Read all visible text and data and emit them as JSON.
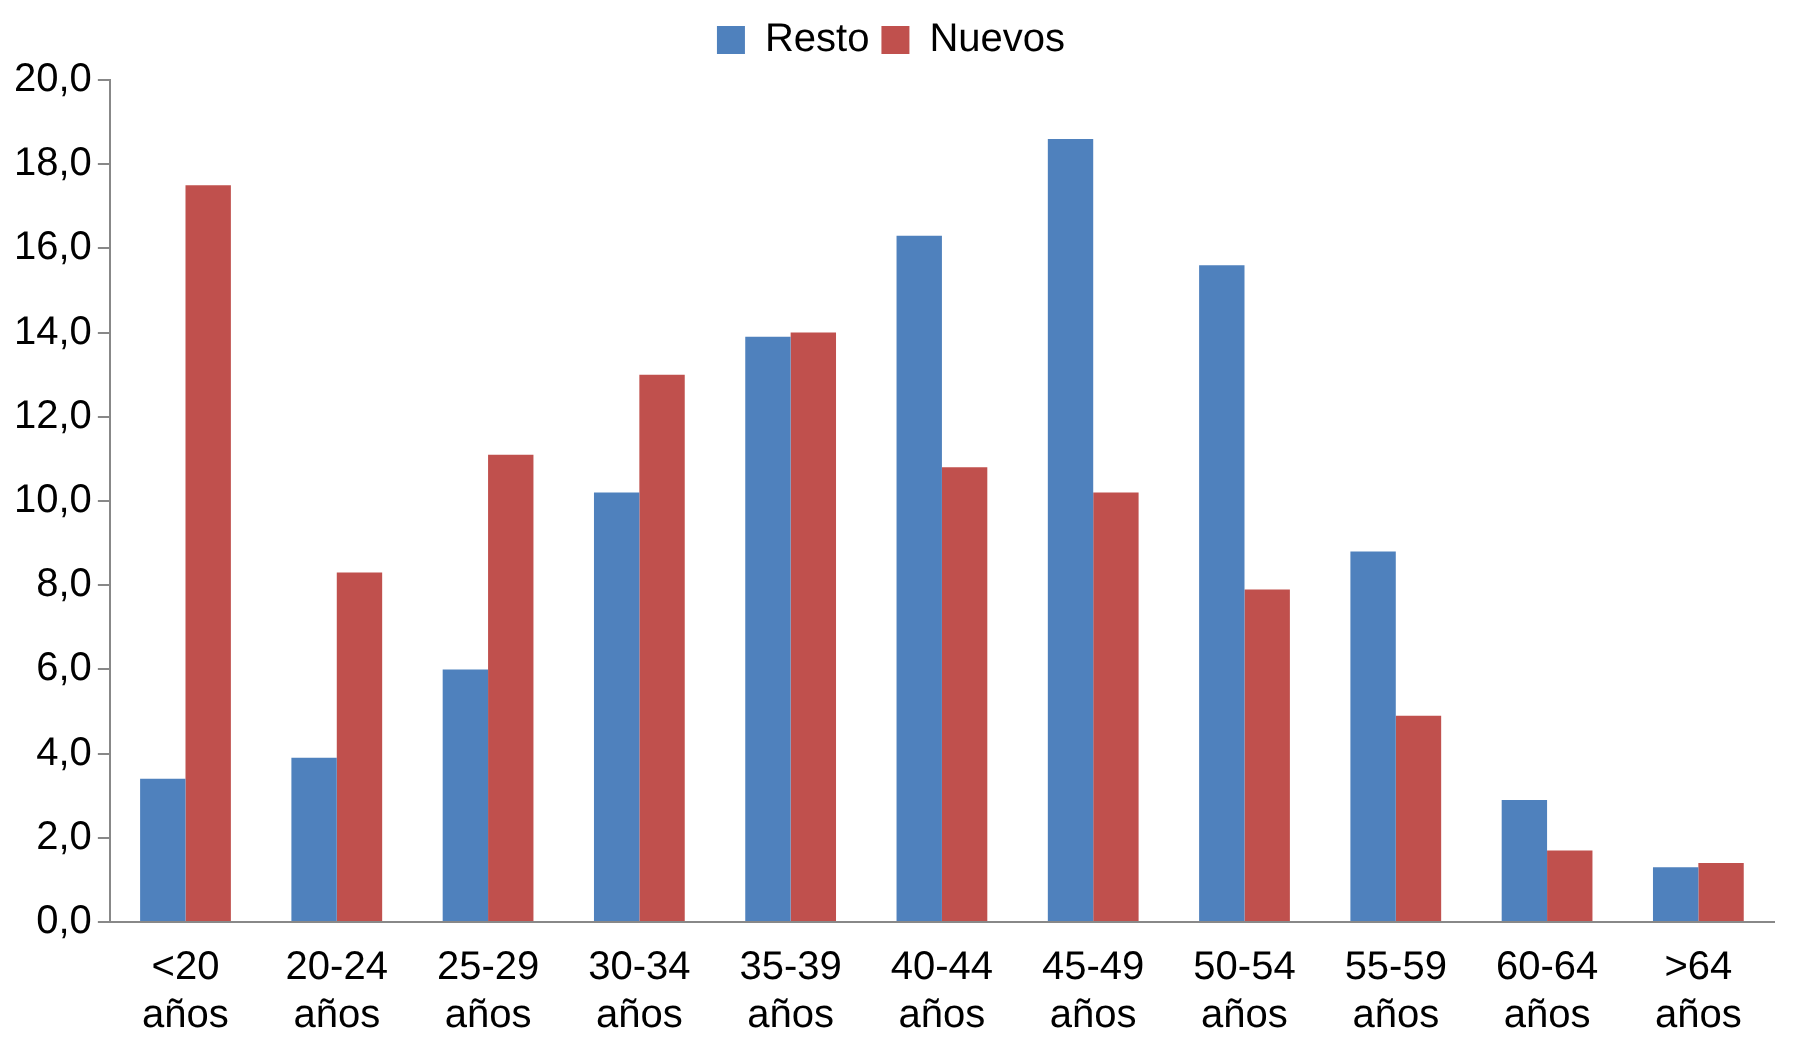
{
  "chart_data": {
    "type": "bar",
    "categories": [
      "<20 años",
      "20-24 años",
      "25-29 años",
      "30-34 años",
      "35-39 años",
      "40-44 años",
      "45-49 años",
      "50-54 años",
      "55-59 años",
      "60-64 años",
      ">64 años"
    ],
    "series": [
      {
        "name": "Resto",
        "color": "#4f81bd",
        "values": [
          3.4,
          3.9,
          6.0,
          10.2,
          13.9,
          16.3,
          18.6,
          15.6,
          8.8,
          2.9,
          1.3
        ]
      },
      {
        "name": "Nuevos",
        "color": "#c0504d",
        "values": [
          17.5,
          8.3,
          11.1,
          13.0,
          14.0,
          10.8,
          10.2,
          7.9,
          4.9,
          1.7,
          1.4
        ]
      }
    ],
    "ylim": [
      0,
      20
    ],
    "yticks": [
      {
        "value": 0,
        "label": "0,0"
      },
      {
        "value": 2,
        "label": "2,0"
      },
      {
        "value": 4,
        "label": "4,0"
      },
      {
        "value": 6,
        "label": "6,0"
      },
      {
        "value": 8,
        "label": "8,0"
      },
      {
        "value": 10,
        "label": "10,0"
      },
      {
        "value": 12,
        "label": "12,0"
      },
      {
        "value": 14,
        "label": "14,0"
      },
      {
        "value": 16,
        "label": "16,0"
      },
      {
        "value": 18,
        "label": "18,0"
      },
      {
        "value": 20,
        "label": "20,0"
      }
    ],
    "grid": false,
    "legend": "top"
  }
}
